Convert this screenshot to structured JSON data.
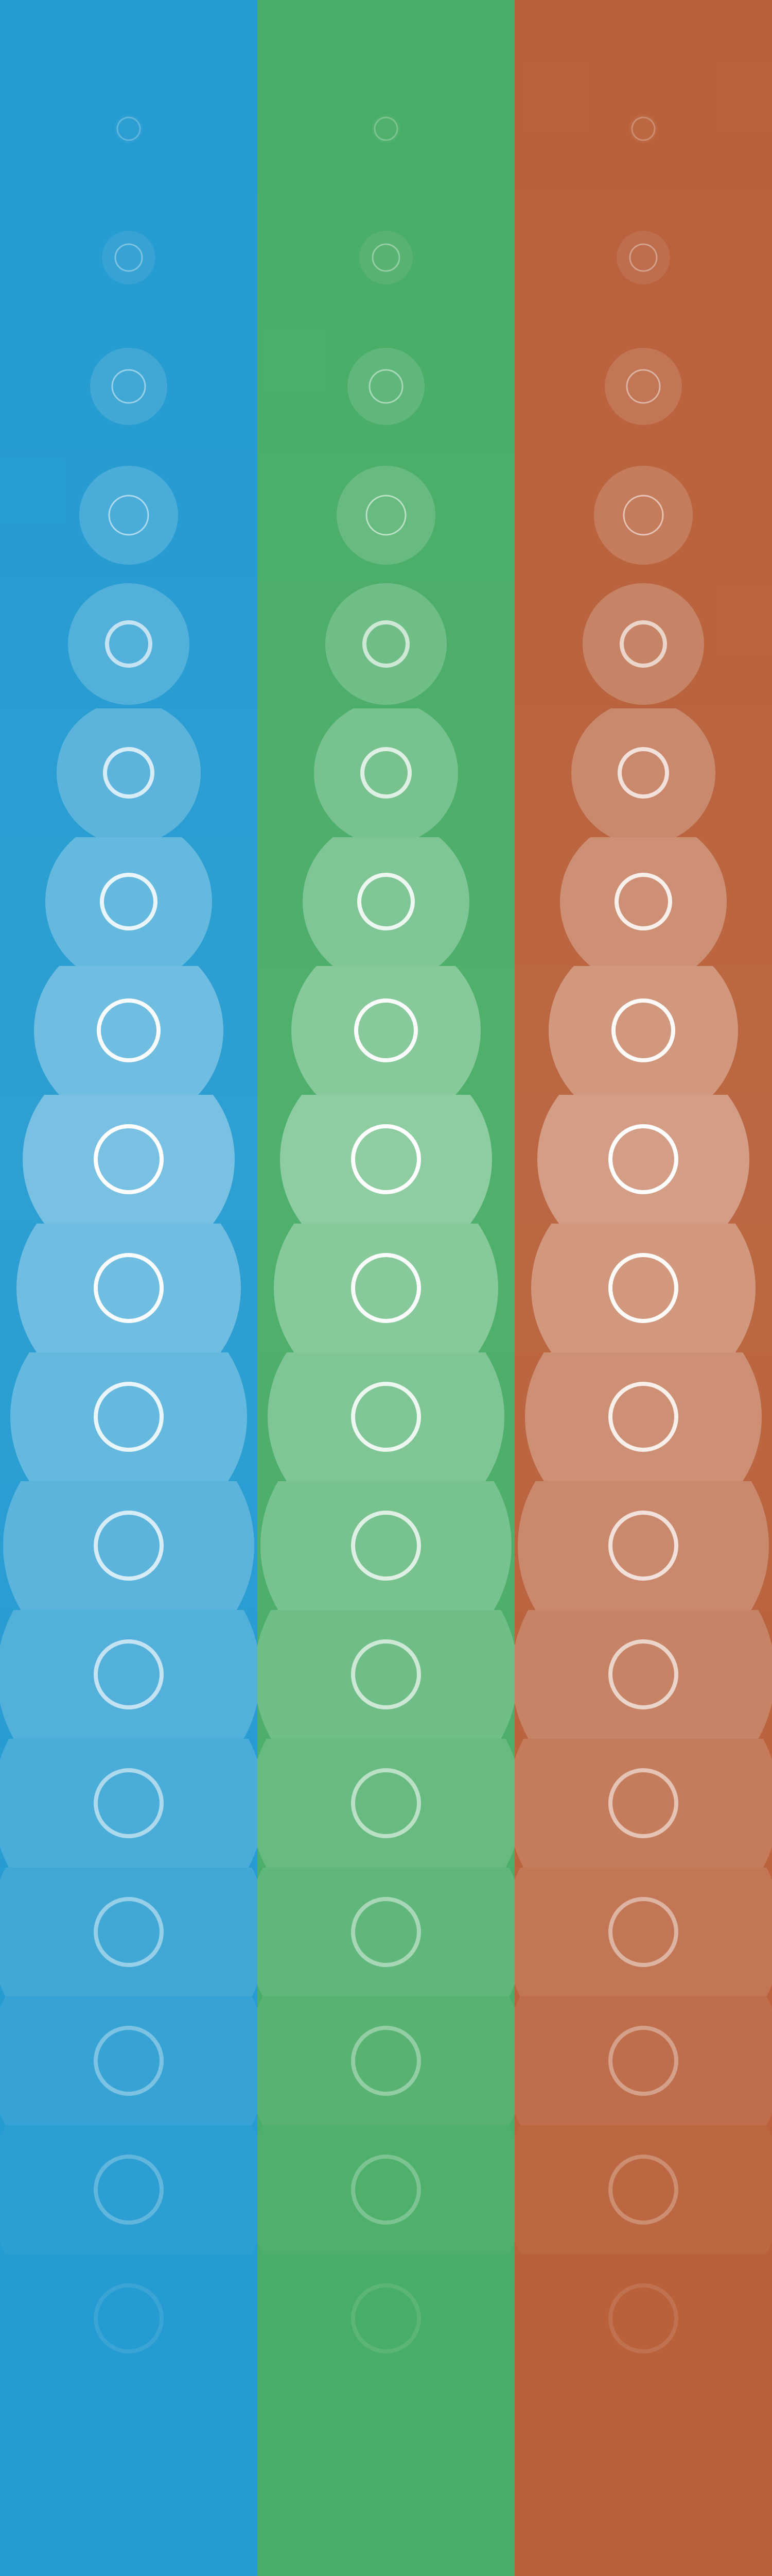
{
  "columns": [
    {
      "name": "blue",
      "color": "#249bd1",
      "row_levels": [
        0.04,
        0.08,
        0.12,
        0.16,
        0.2,
        0.24,
        0.28,
        0.32,
        0.36,
        0.32,
        0.28,
        0.24,
        0.2,
        0.16,
        0.12,
        0.08,
        0.04,
        0.0
      ]
    },
    {
      "name": "green",
      "color": "#48ad67",
      "row_levels": [
        0.04,
        0.08,
        0.12,
        0.16,
        0.2,
        0.24,
        0.28,
        0.32,
        0.36,
        0.32,
        0.28,
        0.24,
        0.2,
        0.16,
        0.12,
        0.08,
        0.04,
        0.0
      ]
    },
    {
      "name": "orange",
      "color": "#b9613b",
      "row_levels": [
        0.04,
        0.08,
        0.12,
        0.16,
        0.2,
        0.24,
        0.28,
        0.32,
        0.36,
        0.32,
        0.28,
        0.24,
        0.2,
        0.16,
        0.12,
        0.08,
        0.04,
        0.0
      ]
    }
  ],
  "icon": "ring-icon"
}
